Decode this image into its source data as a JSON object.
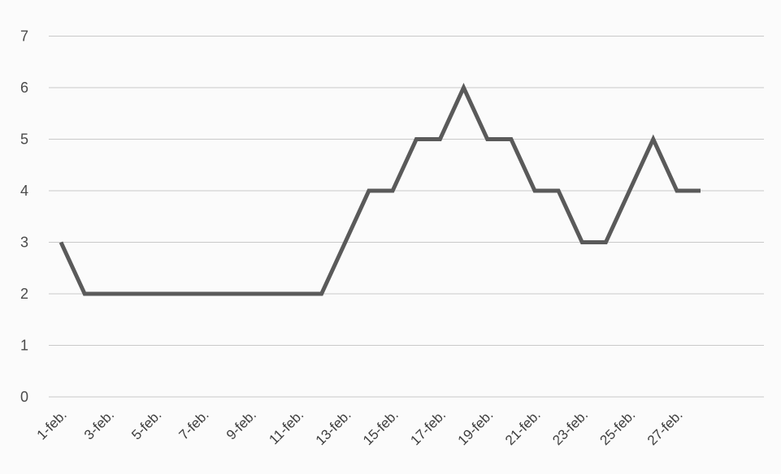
{
  "chart_data": {
    "type": "line",
    "title": "",
    "xlabel": "",
    "ylabel": "",
    "x": [
      "1-feb.",
      "2-feb.",
      "3-feb.",
      "4-feb.",
      "5-feb.",
      "6-feb.",
      "7-feb.",
      "8-feb.",
      "9-feb.",
      "10-feb.",
      "11-feb.",
      "12-feb.",
      "13-feb.",
      "14-feb.",
      "15-feb.",
      "16-feb.",
      "17-feb.",
      "18-feb.",
      "19-feb.",
      "20-feb.",
      "21-feb.",
      "22-feb.",
      "23-feb.",
      "24-feb.",
      "25-feb.",
      "26-feb.",
      "27-feb.",
      "28-feb."
    ],
    "x_tick_labels": [
      "1-feb.",
      "3-feb.",
      "5-feb.",
      "7-feb.",
      "9-feb.",
      "11-feb.",
      "13-feb.",
      "15-feb.",
      "17-feb.",
      "19-feb.",
      "21-feb.",
      "23-feb.",
      "25-feb.",
      "27-feb."
    ],
    "series": [
      {
        "values": [
          3,
          2,
          2,
          2,
          2,
          2,
          2,
          2,
          2,
          2,
          2,
          2,
          3,
          4,
          4,
          5,
          5,
          6,
          5,
          5,
          4,
          4,
          3,
          3,
          4,
          5,
          4,
          4
        ]
      }
    ],
    "ylim": [
      0,
      7
    ],
    "yticks": [
      0,
      1,
      2,
      3,
      4,
      5,
      6,
      7
    ],
    "grid": true,
    "legend": "none",
    "line_color": "#5a5a5a",
    "grid_color": "#c9c9c9"
  }
}
